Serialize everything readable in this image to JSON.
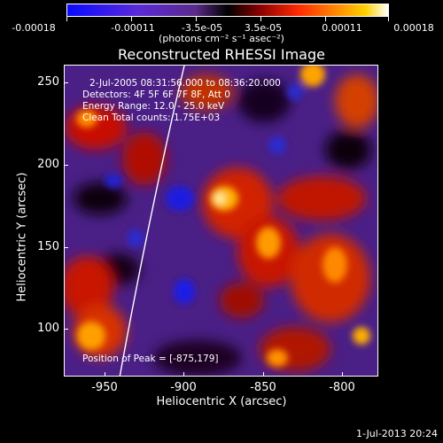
{
  "colorbar": {
    "ticks": [
      "-0.00018",
      "-0.00011",
      "-3.5e-05",
      "3.5e-05",
      "0.00011",
      "0.00018"
    ],
    "units": "(photons cm⁻² s⁻¹ asec⁻²)"
  },
  "title": "Reconstructed RHESSI Image",
  "info": {
    "time": "2-Jul-2005 08:31:56.000 to 08:36:20.000",
    "detectors": "Detectors: 4F 5F 6F 7F 8F, Att 0",
    "energy": "Energy Range: 12.0 - 25.0 keV",
    "clean": "Clean     Total counts: 1.75E+03",
    "peak": "Position of Peak = [-875,179]"
  },
  "axes": {
    "xlabel": "Heliocentric X (arcsec)",
    "ylabel": "Heliocentric Y (arcsec)",
    "xticks": [
      "-950",
      "-900",
      "-850",
      "-800"
    ],
    "yticks": [
      "250",
      "200",
      "150",
      "100"
    ],
    "xlim": [
      -972,
      -785
    ],
    "ylim": [
      70,
      267
    ]
  },
  "datestamp": "1-Jul-2013 20:24"
}
